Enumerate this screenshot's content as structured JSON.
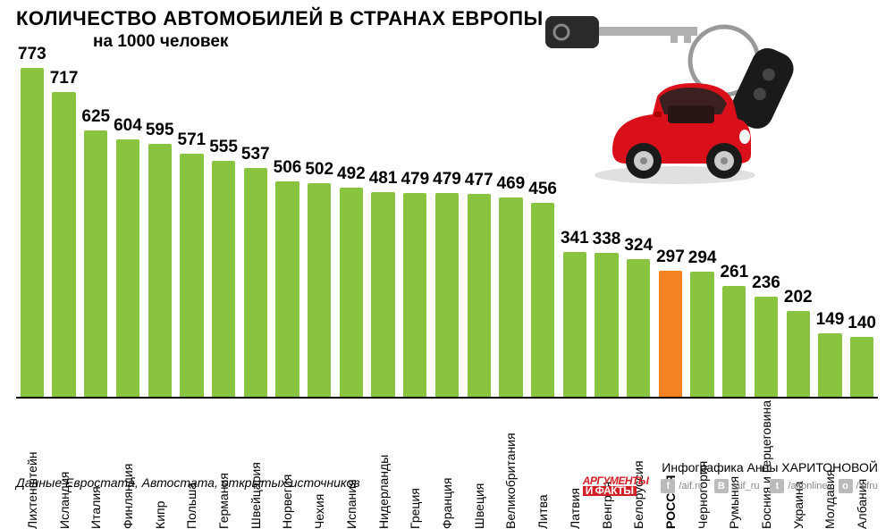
{
  "title": "КОЛИЧЕСТВО АВТОМОБИЛЕЙ В СТРАНАХ ЕВРОПЫ",
  "subtitle": "на 1000 человек",
  "title_fontsize": 22,
  "subtitle_fontsize": 19,
  "chart": {
    "type": "bar",
    "y_max": 773,
    "bar_default_color": "#88c440",
    "bar_highlight_color": "#f58220",
    "value_fontsize": 19,
    "value_highlight_fontsize": 19,
    "label_fontsize": 14,
    "label_color": "#000000",
    "axis_color": "#000000",
    "background_color": "#ffffff",
    "bars": [
      {
        "label": "Лихтенштейн",
        "value": 773,
        "highlight": false
      },
      {
        "label": "Исландия",
        "value": 717,
        "highlight": false
      },
      {
        "label": "Италия",
        "value": 625,
        "highlight": false
      },
      {
        "label": "Финляндия",
        "value": 604,
        "highlight": false
      },
      {
        "label": "Кипр",
        "value": 595,
        "highlight": false
      },
      {
        "label": "Польша",
        "value": 571,
        "highlight": false
      },
      {
        "label": "Германия",
        "value": 555,
        "highlight": false
      },
      {
        "label": "Швейцария",
        "value": 537,
        "highlight": false
      },
      {
        "label": "Норвегия",
        "value": 506,
        "highlight": false
      },
      {
        "label": "Чехия",
        "value": 502,
        "highlight": false
      },
      {
        "label": "Испания",
        "value": 492,
        "highlight": false
      },
      {
        "label": "Нидерланды",
        "value": 481,
        "highlight": false
      },
      {
        "label": "Греция",
        "value": 479,
        "highlight": false
      },
      {
        "label": "Франция",
        "value": 479,
        "highlight": false
      },
      {
        "label": "Швеция",
        "value": 477,
        "highlight": false
      },
      {
        "label": "Великобритания",
        "value": 469,
        "highlight": false
      },
      {
        "label": "Литва",
        "value": 456,
        "highlight": false
      },
      {
        "label": "Латвия",
        "value": 341,
        "highlight": false
      },
      {
        "label": "Венгрия",
        "value": 338,
        "highlight": false
      },
      {
        "label": "Белоруссия",
        "value": 324,
        "highlight": false
      },
      {
        "label": "РОССИЯ",
        "value": 297,
        "highlight": true
      },
      {
        "label": "Черногория",
        "value": 294,
        "highlight": false
      },
      {
        "label": "Румыния",
        "value": 261,
        "highlight": false
      },
      {
        "label": "Босния и Герцеговина",
        "value": 236,
        "highlight": false
      },
      {
        "label": "Украина",
        "value": 202,
        "highlight": false
      },
      {
        "label": "Молдавия",
        "value": 149,
        "highlight": false
      },
      {
        "label": "Албания",
        "value": 140,
        "highlight": false
      }
    ]
  },
  "source": "Данные Евростата, Автостата, открытых источников",
  "source_fontsize": 14,
  "credit": "Инфографика Анны ХАРИТОНОВОЙ",
  "credit_fontsize": 14,
  "logo": {
    "top": "АРГУМЕНТЫ",
    "bottom": "И ФАКТЫ",
    "top_color": "#d32027",
    "bottom_bg": "#d32027",
    "fontsize": 12
  },
  "socials": [
    {
      "icon": "f",
      "handle": "/aif.ru",
      "name": "facebook-icon"
    },
    {
      "icon": "B",
      "handle": "/aif_ru",
      "name": "vk-icon"
    },
    {
      "icon": "t",
      "handle": "/aifonline",
      "name": "twitter-icon"
    },
    {
      "icon": "o",
      "handle": "/aifru",
      "name": "ok-icon"
    }
  ],
  "social_fontsize": 11,
  "car_image": {
    "body_color": "#d9101a",
    "key_color": "#2a2a2a",
    "fob_color": "#1a1a1a",
    "tire_color": "#1a1a1a",
    "wheel_color": "#cccccc"
  }
}
